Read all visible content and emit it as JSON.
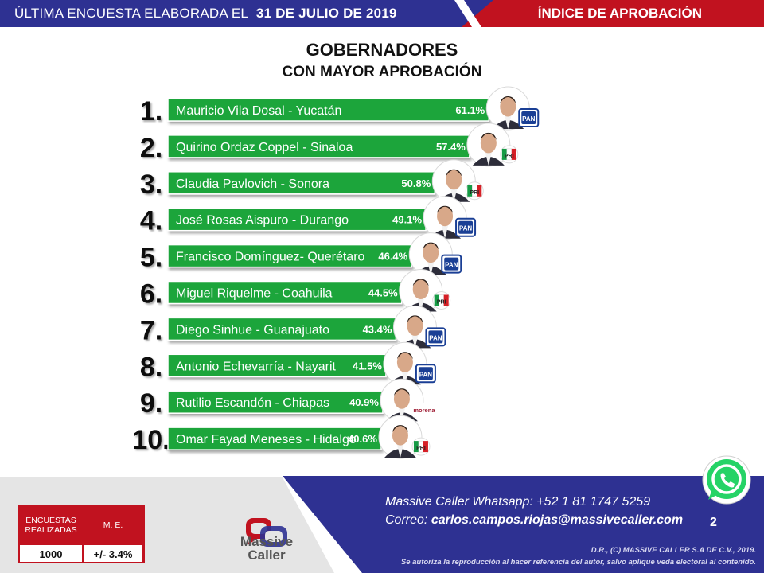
{
  "header": {
    "survey_prefix": "ÚLTIMA ENCUESTA ELABORADA EL",
    "survey_date": "31 DE JULIO DE 2019",
    "index_title": "ÍNDICE DE APROBACIÓN"
  },
  "chart_data": {
    "type": "bar",
    "orientation": "horizontal",
    "title": "GOBERNADORES",
    "subtitle": "CON MAYOR APROBACIÓN",
    "value_suffix": "%",
    "categories": [
      "Mauricio Vila Dosal - Yucatán",
      "Quirino Ordaz Coppel - Sinaloa",
      "Claudia Pavlovich - Sonora",
      "José Rosas Aispuro - Durango",
      "Francisco Domínguez- Querétaro",
      "Miguel Riquelme - Coahuila",
      "Diego Sinhue - Guanajuato",
      "Antonio Echevarría - Nayarit",
      "Rutilio Escandón - Chiapas",
      "Omar Fayad Meneses - Hidalgo"
    ],
    "ranks": [
      "1.",
      "2.",
      "3.",
      "4.",
      "5.",
      "6.",
      "7.",
      "8.",
      "9.",
      "10."
    ],
    "values": [
      61.1,
      57.4,
      50.8,
      49.1,
      46.4,
      44.5,
      43.4,
      41.5,
      40.9,
      40.6
    ],
    "value_labels": [
      "61.1%",
      "57.4%",
      "50.8%",
      "49.1%",
      "46.4%",
      "44.5%",
      "43.4%",
      "41.5%",
      "40.9%",
      "40.6%"
    ],
    "parties": [
      "PAN",
      "PRI",
      "PRI",
      "PAN",
      "PAN",
      "PRI",
      "PAN",
      "PAN",
      "morena",
      "PRI"
    ],
    "party_icons": [
      "pan-logo-icon",
      "pri-logo-icon",
      "pri-logo-icon",
      "pan-logo-icon",
      "pan-logo-icon",
      "pri-logo-icon",
      "pan-logo-icon",
      "pan-logo-icon",
      "morena-logo-icon",
      "pri-logo-icon"
    ],
    "bar_color": "#1ea53a",
    "xlim": [
      0,
      70
    ],
    "grid": false,
    "legend": "none"
  },
  "contact": {
    "whatsapp": "Massive Caller Whatsapp: +52 1 81 1747 5259",
    "email_prefix": "Correo:",
    "email": "carlos.campos.riojas@massivecaller.com"
  },
  "page_number": "2",
  "copyright": "D.R., (C) MASSIVE CALLER S.A DE C.V., 2019.",
  "disclaimer": "Se autoriza la reproducción al hacer referencia del autor, salvo aplique veda electoral al contenido.",
  "stats": {
    "surveys_label": "ENCUESTAS REALIZADAS",
    "me_label": "M. E.",
    "surveys_value": "1000",
    "me_value": "+/- 3.4%"
  },
  "logo": {
    "name": "Massive Caller",
    "icon": "massive-caller-logo-icon"
  },
  "colors": {
    "navy": "#2e3192",
    "red": "#c1121f",
    "green": "#1ea53a",
    "pan_blue": "#1a3f95",
    "pri_green": "#169b45",
    "pri_red": "#d61f26",
    "morena_red": "#9e1b32"
  }
}
